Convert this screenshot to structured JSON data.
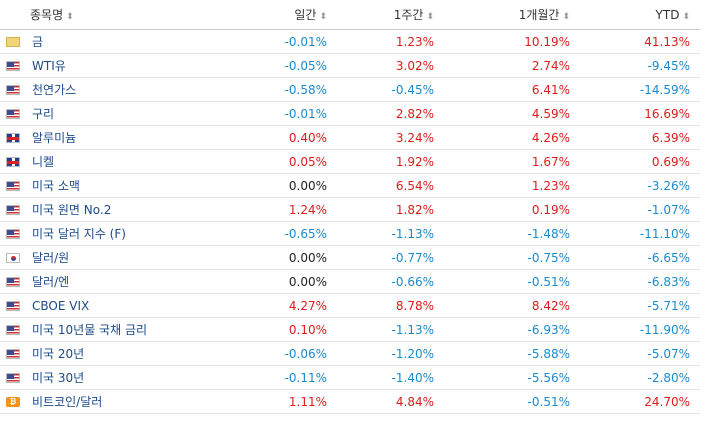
{
  "headers": {
    "name": "종목명",
    "daily": "일간",
    "weekly": "1주간",
    "monthly": "1개월간",
    "ytd": "YTD"
  },
  "sort_icon": "sort-arrows-icon",
  "colors": {
    "positive": "#e01b1b",
    "negative": "#1a8bd1",
    "neutral": "#222222",
    "link": "#1c4a8a"
  },
  "rows": [
    {
      "icon": "gold-icon",
      "name": "금",
      "daily": "-0.01%",
      "weekly": "1.23%",
      "monthly": "10.19%",
      "ytd": "41.13%"
    },
    {
      "icon": "us-flag-icon",
      "name": "WTI유",
      "daily": "-0.05%",
      "weekly": "3.02%",
      "monthly": "2.74%",
      "ytd": "-9.45%"
    },
    {
      "icon": "us-flag-icon",
      "name": "천연가스",
      "daily": "-0.58%",
      "weekly": "-0.45%",
      "monthly": "6.41%",
      "ytd": "-14.59%"
    },
    {
      "icon": "us-flag-icon",
      "name": "구리",
      "daily": "-0.01%",
      "weekly": "2.82%",
      "monthly": "4.59%",
      "ytd": "16.69%"
    },
    {
      "icon": "uk-flag-icon",
      "name": "알루미늄",
      "daily": "0.40%",
      "weekly": "3.24%",
      "monthly": "4.26%",
      "ytd": "6.39%"
    },
    {
      "icon": "uk-flag-icon",
      "name": "니켈",
      "daily": "0.05%",
      "weekly": "1.92%",
      "monthly": "1.67%",
      "ytd": "0.69%"
    },
    {
      "icon": "us-flag-icon",
      "name": "미국 소맥",
      "daily": "0.00%",
      "weekly": "6.54%",
      "monthly": "1.23%",
      "ytd": "-3.26%"
    },
    {
      "icon": "us-flag-icon",
      "name": "미국 원면 No.2",
      "daily": "1.24%",
      "weekly": "1.82%",
      "monthly": "0.19%",
      "ytd": "-1.07%"
    },
    {
      "icon": "us-flag-icon",
      "name": "미국 달러 지수 (F)",
      "daily": "-0.65%",
      "weekly": "-1.13%",
      "monthly": "-1.48%",
      "ytd": "-11.10%"
    },
    {
      "icon": "kr-flag-icon",
      "name": "달러/원",
      "daily": "0.00%",
      "weekly": "-0.77%",
      "monthly": "-0.75%",
      "ytd": "-6.65%"
    },
    {
      "icon": "us-flag-icon",
      "name": "달러/엔",
      "daily": "0.00%",
      "weekly": "-0.66%",
      "monthly": "-0.51%",
      "ytd": "-6.83%"
    },
    {
      "icon": "us-flag-icon",
      "name": "CBOE VIX",
      "daily": "4.27%",
      "weekly": "8.78%",
      "monthly": "8.42%",
      "ytd": "-5.71%"
    },
    {
      "icon": "us-flag-icon",
      "name": "미국 10년물 국채 금리",
      "daily": "0.10%",
      "weekly": "-1.13%",
      "monthly": "-6.93%",
      "ytd": "-11.90%"
    },
    {
      "icon": "us-flag-icon",
      "name": "미국 20년",
      "daily": "-0.06%",
      "weekly": "-1.20%",
      "monthly": "-5.88%",
      "ytd": "-5.07%"
    },
    {
      "icon": "us-flag-icon",
      "name": "미국 30년",
      "daily": "-0.11%",
      "weekly": "-1.40%",
      "monthly": "-5.56%",
      "ytd": "-2.80%"
    },
    {
      "icon": "bitcoin-icon",
      "name": "비트코인/달러",
      "daily": "1.11%",
      "weekly": "4.84%",
      "monthly": "-0.51%",
      "ytd": "24.70%"
    }
  ]
}
